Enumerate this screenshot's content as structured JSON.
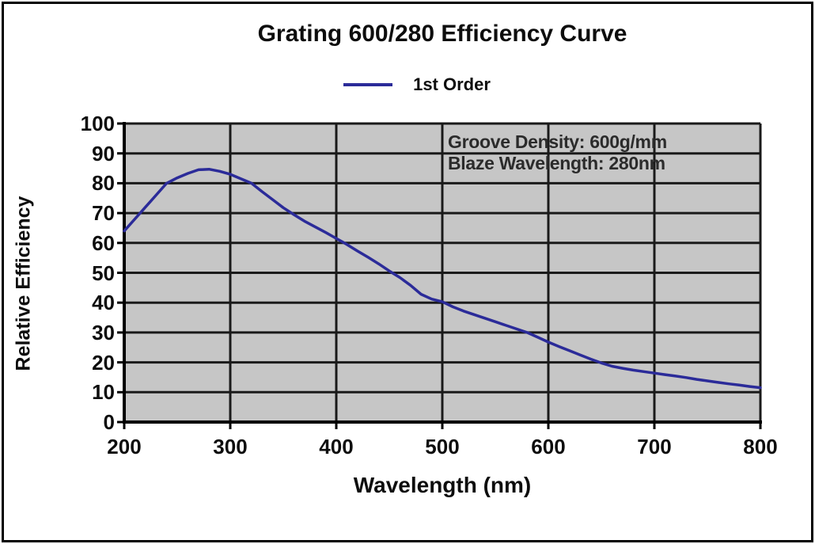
{
  "title": "Grating 600/280 Efficiency Curve",
  "legend": {
    "label": "1st Order"
  },
  "annotation": {
    "line1": "Groove Density: 600g/mm",
    "line2": "Blaze Wavelength: 280nm"
  },
  "colors": {
    "plot_bg": "#c6c6c6",
    "grid": "#1a1a1a",
    "axis": "#000000",
    "curve": "#2b2b99",
    "annotation_text": "#2b2b2b"
  },
  "chart_data": {
    "type": "line",
    "title": "Grating 600/280 Efficiency Curve",
    "xlabel": "Wavelength (nm)",
    "ylabel": "Relative Efficiency",
    "xlim": [
      200,
      800
    ],
    "ylim": [
      0,
      100
    ],
    "x_ticks": [
      200,
      300,
      400,
      500,
      600,
      700,
      800
    ],
    "y_ticks": [
      0,
      10,
      20,
      30,
      40,
      50,
      60,
      70,
      80,
      90,
      100
    ],
    "grid": true,
    "legend_position": "top-center",
    "annotations": [
      "Groove Density: 600g/mm",
      "Blaze Wavelength: 280nm"
    ],
    "series": [
      {
        "name": "1st Order",
        "color": "#2b2b99",
        "x": [
          200,
          210,
          220,
          230,
          240,
          250,
          260,
          270,
          280,
          290,
          300,
          310,
          320,
          330,
          340,
          350,
          360,
          370,
          380,
          390,
          400,
          410,
          420,
          430,
          440,
          450,
          460,
          470,
          480,
          490,
          500,
          510,
          520,
          530,
          540,
          550,
          560,
          570,
          580,
          590,
          600,
          610,
          620,
          630,
          640,
          650,
          660,
          670,
          680,
          690,
          700,
          710,
          720,
          730,
          740,
          750,
          760,
          770,
          780,
          790,
          800
        ],
        "y": [
          64,
          68,
          72,
          76,
          80,
          81.8,
          83.3,
          84.5,
          84.7,
          84,
          83,
          81.5,
          80,
          77.2,
          74.5,
          71.8,
          69.5,
          67.3,
          65.4,
          63.5,
          61.5,
          59.5,
          57.3,
          55.2,
          53,
          50.6,
          48.4,
          45.8,
          42.8,
          41.2,
          40.3,
          38.6,
          37.2,
          36,
          34.8,
          33.6,
          32.4,
          31.2,
          30,
          28.4,
          26.8,
          25.3,
          23.9,
          22.5,
          21.1,
          19.8,
          18.7,
          18,
          17.4,
          16.9,
          16.4,
          15.9,
          15.4,
          14.9,
          14.3,
          13.8,
          13.3,
          12.8,
          12.4,
          11.9,
          11.5
        ]
      }
    ]
  }
}
